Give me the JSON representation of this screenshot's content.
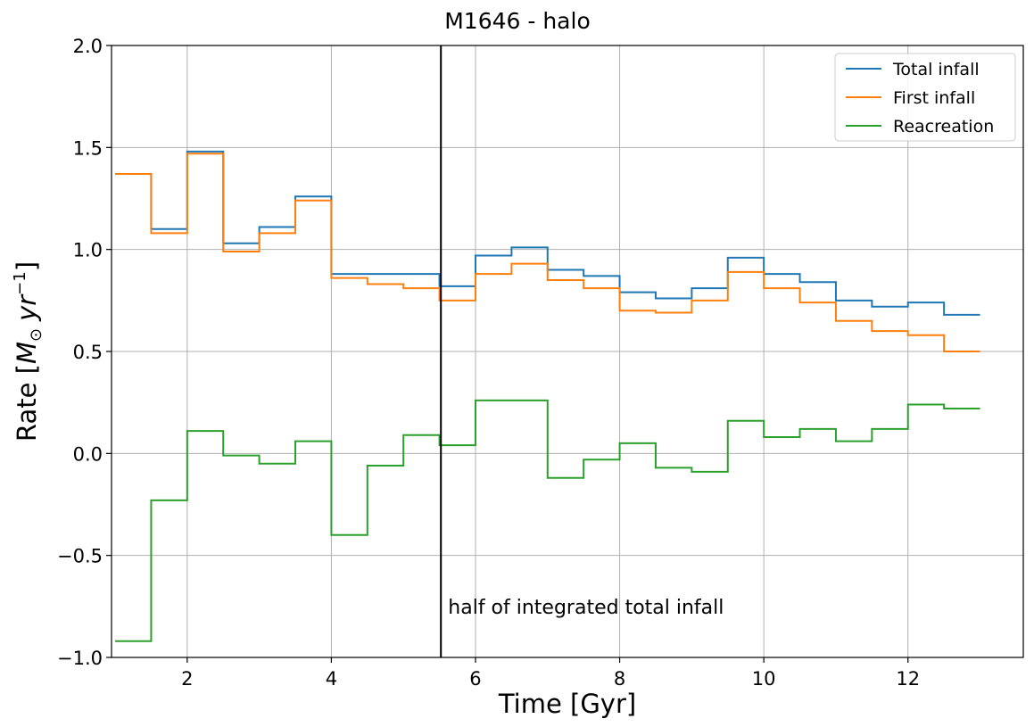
{
  "chart_data": {
    "type": "line",
    "step": "post",
    "title": "M1646 - halo",
    "xlabel": "Time [Gyr]",
    "ylabel_text": "Rate [",
    "ylabel_math": "M",
    "ylabel_sub": "⊙",
    "ylabel_unit": "yr",
    "ylabel_exp": "−1",
    "ylabel_close": "]",
    "xlim": [
      0.95,
      13.6
    ],
    "ylim": [
      -1.0,
      2.0
    ],
    "xticks": [
      2,
      4,
      6,
      8,
      10,
      12
    ],
    "xtick_labels": [
      "2",
      "4",
      "6",
      "8",
      "10",
      "12"
    ],
    "yticks": [
      -1.0,
      -0.5,
      0.0,
      0.5,
      1.0,
      1.5,
      2.0
    ],
    "ytick_labels": [
      "−1.0",
      "−0.5",
      "0.0",
      "0.5",
      "1.0",
      "1.5",
      "2.0"
    ],
    "grid": true,
    "legend_position": "top-right",
    "x": [
      1.0,
      1.5,
      2.0,
      2.5,
      3.0,
      3.5,
      4.0,
      4.5,
      5.0,
      5.5,
      6.0,
      6.5,
      7.0,
      7.5,
      8.0,
      8.5,
      9.0,
      9.5,
      10.0,
      10.5,
      11.0,
      11.5,
      12.0,
      12.5,
      13.0
    ],
    "series": [
      {
        "name": "Total infall",
        "color": "#1f77b4",
        "values": [
          1.37,
          1.1,
          1.48,
          1.03,
          1.11,
          1.26,
          0.88,
          0.88,
          0.88,
          0.82,
          0.97,
          1.01,
          0.9,
          0.87,
          0.79,
          0.76,
          0.81,
          0.96,
          0.88,
          0.84,
          0.75,
          0.72,
          0.74,
          0.68,
          0.68
        ]
      },
      {
        "name": "First infall",
        "color": "#ff7f0e",
        "values": [
          1.37,
          1.08,
          1.47,
          0.99,
          1.08,
          1.24,
          0.86,
          0.83,
          0.81,
          0.75,
          0.88,
          0.93,
          0.85,
          0.81,
          0.7,
          0.69,
          0.75,
          0.89,
          0.81,
          0.74,
          0.65,
          0.6,
          0.58,
          0.5,
          0.5
        ]
      },
      {
        "name": "Reacreation",
        "color": "#2ca02c",
        "values": [
          -0.92,
          -0.23,
          0.11,
          -0.01,
          -0.05,
          0.06,
          -0.4,
          -0.06,
          0.09,
          0.04,
          0.26,
          0.26,
          -0.12,
          -0.03,
          0.05,
          -0.07,
          -0.09,
          0.16,
          0.08,
          0.12,
          0.06,
          0.12,
          0.24,
          0.22,
          0.22
        ]
      }
    ],
    "vline": {
      "x": 5.52,
      "color": "#000000"
    },
    "annotation": {
      "text": "half of integrated total infall",
      "x": 5.62,
      "y": -0.75
    }
  }
}
